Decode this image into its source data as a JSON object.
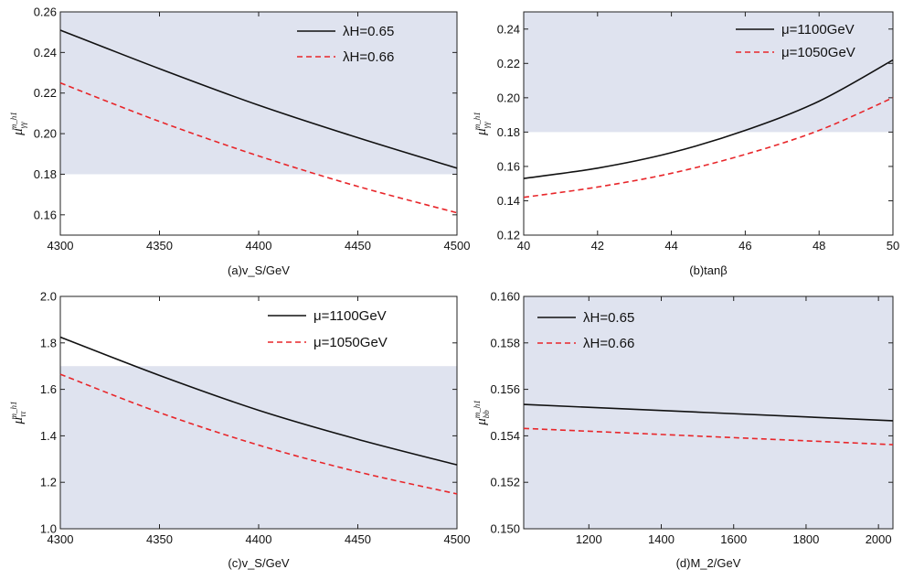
{
  "colors": {
    "band": "#dfe3ef",
    "black_series": "#111111",
    "red_series": "#e8262a"
  },
  "chart_data": [
    {
      "type": "line",
      "caption": "(a)v_S/GeV",
      "ylabel_main": "μ",
      "ylabel_sub": "γγ",
      "ylabel_sup": "m_h1",
      "xlim": [
        4300,
        4500
      ],
      "ylim": [
        0.15,
        0.26
      ],
      "xticks": [
        "4300",
        "4350",
        "4400",
        "4450",
        "4500"
      ],
      "yticks": [
        "0.16",
        "0.18",
        "0.20",
        "0.22",
        "0.24",
        "0.26"
      ],
      "band": [
        0.18,
        0.26
      ],
      "legend_position": "top-right",
      "series": [
        {
          "name": "λH=0.65",
          "style": "solid",
          "x": [
            4300,
            4350,
            4400,
            4450,
            4500
          ],
          "y": [
            0.251,
            0.232,
            0.214,
            0.198,
            0.183
          ]
        },
        {
          "name": "λH=0.66",
          "style": "dashed",
          "x": [
            4300,
            4350,
            4400,
            4450,
            4500
          ],
          "y": [
            0.225,
            0.206,
            0.189,
            0.174,
            0.161
          ]
        }
      ]
    },
    {
      "type": "line",
      "caption": "(b)tanβ",
      "ylabel_main": "μ",
      "ylabel_sub": "γγ",
      "ylabel_sup": "m_h1",
      "xlim": [
        40,
        50
      ],
      "ylim": [
        0.12,
        0.25
      ],
      "xticks": [
        "40",
        "42",
        "44",
        "46",
        "48",
        "50"
      ],
      "yticks": [
        "0.12",
        "0.14",
        "0.16",
        "0.18",
        "0.20",
        "0.22",
        "0.24"
      ],
      "band": [
        0.18,
        0.25
      ],
      "legend_position": "top-right",
      "series": [
        {
          "name": "μ=1100GeV",
          "style": "solid",
          "x": [
            40,
            42,
            44,
            46,
            48,
            50
          ],
          "y": [
            0.153,
            0.159,
            0.168,
            0.181,
            0.198,
            0.222
          ]
        },
        {
          "name": "μ=1050GeV",
          "style": "dashed",
          "x": [
            40,
            42,
            44,
            46,
            48,
            50
          ],
          "y": [
            0.142,
            0.148,
            0.156,
            0.167,
            0.181,
            0.2
          ]
        }
      ]
    },
    {
      "type": "line",
      "caption": "(c)v_S/GeV",
      "ylabel_main": "μ",
      "ylabel_sub": "ττ",
      "ylabel_sup": "m_h1",
      "xlim": [
        4300,
        4500
      ],
      "ylim": [
        1.0,
        2.0
      ],
      "xticks": [
        "4300",
        "4350",
        "4400",
        "4450",
        "4500"
      ],
      "yticks": [
        "1.0",
        "1.2",
        "1.4",
        "1.6",
        "1.8",
        "2.0"
      ],
      "band": [
        1.0,
        1.7
      ],
      "legend_position": "top-right",
      "series": [
        {
          "name": "μ=1100GeV",
          "style": "solid",
          "x": [
            4300,
            4350,
            4400,
            4450,
            4500
          ],
          "y": [
            1.825,
            1.66,
            1.51,
            1.385,
            1.275
          ]
        },
        {
          "name": "μ=1050GeV",
          "style": "dashed",
          "x": [
            4300,
            4350,
            4400,
            4450,
            4500
          ],
          "y": [
            1.665,
            1.5,
            1.36,
            1.245,
            1.15
          ]
        }
      ]
    },
    {
      "type": "line",
      "caption": "(d)M_2/GeV",
      "ylabel_main": "μ",
      "ylabel_sub": "bb",
      "ylabel_sup": "m_h1",
      "xlim": [
        1020,
        2040
      ],
      "ylim": [
        0.15,
        0.16
      ],
      "xticks": [
        "1200",
        "1400",
        "1600",
        "1800",
        "2000"
      ],
      "yticks": [
        "0.150",
        "0.152",
        "0.154",
        "0.156",
        "0.158",
        "0.160"
      ],
      "band": [
        0.15,
        0.16
      ],
      "legend_position": "top-left",
      "series": [
        {
          "name": "λH=0.65",
          "style": "solid",
          "x": [
            1020,
            2040
          ],
          "y": [
            0.15535,
            0.15465
          ]
        },
        {
          "name": "λH=0.66",
          "style": "dashed",
          "x": [
            1020,
            2040
          ],
          "y": [
            0.15432,
            0.15362
          ]
        }
      ]
    }
  ]
}
